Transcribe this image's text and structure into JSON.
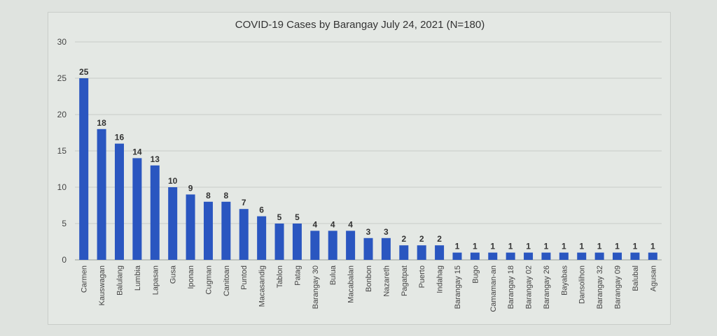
{
  "chart_data": {
    "type": "bar",
    "title": "COVID-19 Cases by Barangay July 24, 2021 (N=180)",
    "xlabel": "",
    "ylabel": "",
    "ylim": [
      0,
      30
    ],
    "yticks": [
      0,
      5,
      10,
      15,
      20,
      25,
      30
    ],
    "grid": true,
    "bar_color": "#2a56c0",
    "categories": [
      "Carmen",
      "Kauswagan",
      "Balulang",
      "Lumbia",
      "Lapasan",
      "Gusa",
      "Iponan",
      "Cugman",
      "Canitoan",
      "Puntod",
      "Macasandig",
      "Tablon",
      "Patag",
      "Barangay 30",
      "Bulua",
      "Macabalan",
      "Bonbon",
      "Nazareth",
      "Pagatpat",
      "Puerto",
      "Indahag",
      "Barangay 15",
      "Bugo",
      "Camaman-an",
      "Barangay 18",
      "Barangay 02",
      "Barangay 26",
      "Bayabas",
      "Dansolihon",
      "Barangay 32",
      "Barangay 09",
      "Balubal",
      "Agusan"
    ],
    "values": [
      25,
      18,
      16,
      14,
      13,
      10,
      9,
      8,
      8,
      7,
      6,
      5,
      5,
      4,
      4,
      4,
      3,
      3,
      2,
      2,
      2,
      1,
      1,
      1,
      1,
      1,
      1,
      1,
      1,
      1,
      1,
      1,
      1
    ]
  }
}
